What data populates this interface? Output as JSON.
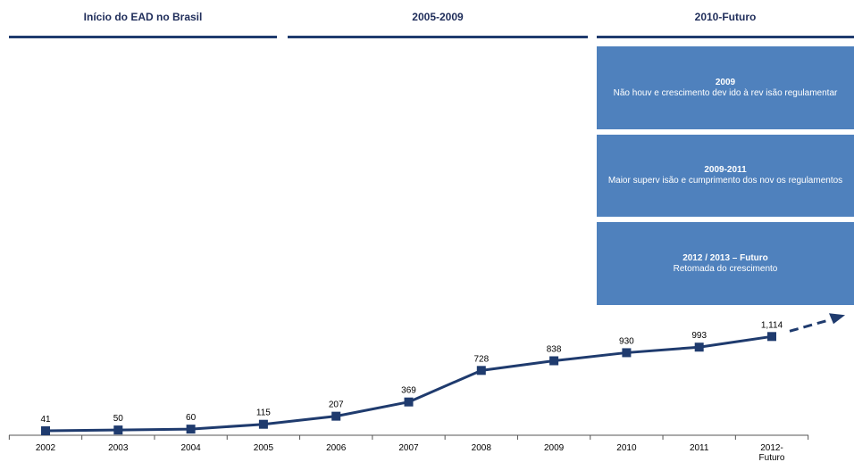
{
  "headers": [
    "Início do EAD no Brasil",
    "2005-2009",
    "2010-Futuro"
  ],
  "notes": [
    {
      "title": "2009",
      "text": "Não houv e crescimento dev ido à rev isão regulamentar"
    },
    {
      "title": "2009-2011",
      "text": "Maior superv isão e cumprimento dos nov os regulamentos"
    },
    {
      "title": "2012 / 2013 – Futuro",
      "text": "Retomada do crescimento"
    }
  ],
  "colors": {
    "line": "#1f3b6e",
    "box": "#4f81bd",
    "header_rule": "#1f3b6e"
  },
  "chart_data": {
    "type": "line",
    "categories": [
      "2002",
      "2003",
      "2004",
      "2005",
      "2006",
      "2007",
      "2008",
      "2009",
      "2010",
      "2011",
      "2012-Futuro"
    ],
    "values": [
      41,
      50,
      60,
      115,
      207,
      369,
      728,
      838,
      930,
      993,
      1114
    ],
    "value_labels": [
      "41",
      "50",
      "60",
      "115",
      "207",
      "369",
      "728",
      "838",
      "930",
      "993",
      "1,114"
    ],
    "trend": "dashed arrow continuing upward after 2012-Futuro",
    "title": "",
    "xlabel": "",
    "ylabel": "",
    "grid": false,
    "legend": "none"
  }
}
